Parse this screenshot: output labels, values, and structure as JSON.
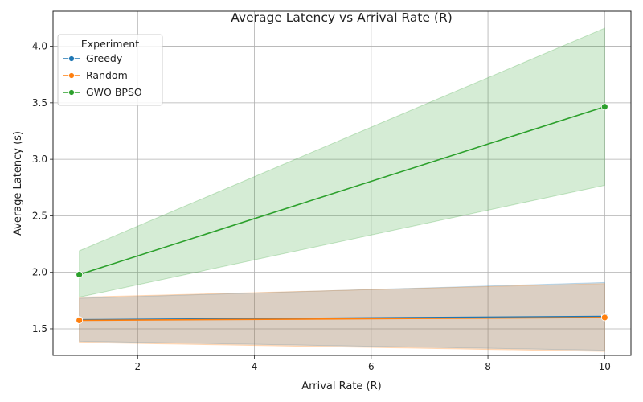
{
  "chart_data": {
    "type": "line",
    "title": "Average Latency vs Arrival Rate (R)",
    "xlabel": "Arrival Rate (R)",
    "ylabel": "Average Latency (s)",
    "xlim": [
      0.55,
      10.45
    ],
    "ylim": [
      1.265,
      4.31
    ],
    "xticks": [
      2,
      4,
      6,
      8,
      10
    ],
    "yticks": [
      1.5,
      2.0,
      2.5,
      3.0,
      3.5,
      4.0
    ],
    "ytick_labels": [
      "1.5",
      "2.0",
      "2.5",
      "3.0",
      "3.5",
      "4.0"
    ],
    "grid": true,
    "legend": {
      "title": "Experiment",
      "placement": "top-left"
    },
    "x": [
      1,
      10
    ],
    "series": [
      {
        "name": "Greedy",
        "color": "#1f77b4",
        "values": [
          1.58,
          1.61
        ],
        "ci_lower": [
          1.39,
          1.31
        ],
        "ci_upper": [
          1.77,
          1.91
        ]
      },
      {
        "name": "Random",
        "color": "#ff7f0e",
        "values": [
          1.575,
          1.6
        ],
        "ci_lower": [
          1.38,
          1.3
        ],
        "ci_upper": [
          1.78,
          1.9
        ]
      },
      {
        "name": "GWO BPSO",
        "color": "#2ca02c",
        "values": [
          1.98,
          3.465
        ],
        "ci_lower": [
          1.78,
          2.77
        ],
        "ci_upper": [
          2.19,
          4.16
        ]
      }
    ]
  }
}
